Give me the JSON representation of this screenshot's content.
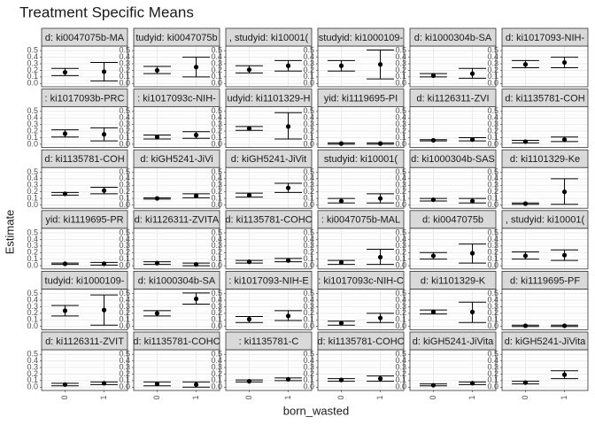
{
  "chart_data": {
    "type": "errorbar-facets",
    "title": "Treatment Specific Means",
    "x_label": "born_wasted",
    "y_label": "Estimate",
    "categories": [
      "0",
      "1"
    ],
    "ylim": [
      -0.05,
      0.57
    ],
    "yticks": [
      {
        "value": 0,
        "label": "0.0"
      },
      0.1,
      0.2,
      0.3,
      0.4,
      0.5
    ],
    "grid": true,
    "color": "#000000",
    "panels": [
      {
        "title": "d: ki0047075b-MA",
        "values": [
          0.17,
          0.18
        ],
        "lower": [
          0.12,
          0.04
        ],
        "upper": [
          0.23,
          0.32
        ]
      },
      {
        "title": "tudyid: ki0047075b",
        "values": [
          0.2,
          0.25
        ],
        "lower": [
          0.15,
          0.1
        ],
        "upper": [
          0.26,
          0.4
        ]
      },
      {
        "title": ", studyid: ki10001(",
        "values": [
          0.21,
          0.27
        ],
        "lower": [
          0.16,
          0.19
        ],
        "upper": [
          0.27,
          0.35
        ]
      },
      {
        "title": "studyid: ki1000109-",
        "values": [
          0.27,
          0.29
        ],
        "lower": [
          0.19,
          0.07
        ],
        "upper": [
          0.35,
          0.51
        ]
      },
      {
        "title": "d: ki1000304b-SA",
        "values": [
          0.12,
          0.15
        ],
        "lower": [
          0.1,
          0.08
        ],
        "upper": [
          0.15,
          0.23
        ]
      },
      {
        "title": "d: ki1017093-NIH-",
        "values": [
          0.29,
          0.32
        ],
        "lower": [
          0.24,
          0.24
        ],
        "upper": [
          0.35,
          0.4
        ]
      },
      {
        "title": ": ki1017093b-PRC",
        "values": [
          0.16,
          0.15
        ],
        "lower": [
          0.11,
          0.05
        ],
        "upper": [
          0.22,
          0.25
        ]
      },
      {
        "title": ": ki1017093c-NIH-",
        "values": [
          0.11,
          0.14
        ],
        "lower": [
          0.08,
          0.09
        ],
        "upper": [
          0.14,
          0.19
        ]
      },
      {
        "title": "udyid: ki1101329-H",
        "values": [
          0.24,
          0.27
        ],
        "lower": [
          0.21,
          0.08
        ],
        "upper": [
          0.27,
          0.48
        ]
      },
      {
        "title": "yid: ki1119695-PI",
        "values": [
          0.01,
          0.01
        ],
        "lower": [
          0.0,
          0.0
        ],
        "upper": [
          0.02,
          0.02
        ]
      },
      {
        "title": "d: ki1126311-ZVI",
        "values": [
          0.06,
          0.07
        ],
        "lower": [
          0.05,
          0.05
        ],
        "upper": [
          0.07,
          0.1
        ]
      },
      {
        "title": "d: ki1135781-COH",
        "values": [
          0.04,
          0.07
        ],
        "lower": [
          0.02,
          0.04
        ],
        "upper": [
          0.06,
          0.11
        ]
      },
      {
        "title": "d: ki1135781-COH",
        "values": [
          0.17,
          0.22
        ],
        "lower": [
          0.15,
          0.17
        ],
        "upper": [
          0.19,
          0.27
        ]
      },
      {
        "title": "d: kiGH5241-JiVi",
        "values": [
          0.1,
          0.14
        ],
        "lower": [
          0.09,
          0.11
        ],
        "upper": [
          0.11,
          0.17
        ]
      },
      {
        "title": "d: kiGH5241-JiVit",
        "values": [
          0.15,
          0.26
        ],
        "lower": [
          0.12,
          0.19
        ],
        "upper": [
          0.18,
          0.33
        ]
      },
      {
        "title": "studyid: ki10001(",
        "values": [
          0.06,
          0.1
        ],
        "lower": [
          0.03,
          0.03
        ],
        "upper": [
          0.1,
          0.17
        ]
      },
      {
        "title": "d: ki1000304b-SAS",
        "values": [
          0.08,
          0.06
        ],
        "lower": [
          0.06,
          0.03
        ],
        "upper": [
          0.1,
          0.1
        ]
      },
      {
        "title": "d: ki1101329-Ke",
        "values": [
          0.02,
          0.2
        ],
        "lower": [
          0.01,
          0.01
        ],
        "upper": [
          0.03,
          0.4
        ]
      },
      {
        "title": "yid: ki1119695-PR",
        "values": [
          0.03,
          0.03
        ],
        "lower": [
          0.02,
          0.01
        ],
        "upper": [
          0.04,
          0.05
        ]
      },
      {
        "title": "d: ki1126311-ZVITA",
        "values": [
          0.04,
          0.02
        ],
        "lower": [
          0.02,
          0.0
        ],
        "upper": [
          0.06,
          0.04
        ]
      },
      {
        "title": "d: ki1135781-COHC",
        "values": [
          0.06,
          0.08
        ],
        "lower": [
          0.04,
          0.06
        ],
        "upper": [
          0.08,
          0.11
        ]
      },
      {
        "title": ": ki0047075b-MAL",
        "values": [
          0.05,
          0.13
        ],
        "lower": [
          0.02,
          0.02
        ],
        "upper": [
          0.08,
          0.25
        ]
      },
      {
        "title": "d: ki0047075b",
        "values": [
          0.15,
          0.19
        ],
        "lower": [
          0.1,
          0.04
        ],
        "upper": [
          0.2,
          0.33
        ]
      },
      {
        "title": ", studyid: ki10001(",
        "values": [
          0.15,
          0.16
        ],
        "lower": [
          0.1,
          0.08
        ],
        "upper": [
          0.21,
          0.24
        ]
      },
      {
        "title": "tudyid: ki1000109-",
        "values": [
          0.24,
          0.25
        ],
        "lower": [
          0.16,
          0.02
        ],
        "upper": [
          0.32,
          0.48
        ]
      },
      {
        "title": "d: ki1000304b-SA",
        "values": [
          0.2,
          0.42
        ],
        "lower": [
          0.16,
          0.34
        ],
        "upper": [
          0.24,
          0.51
        ]
      },
      {
        "title": ": ki1017093-NIH-E",
        "values": [
          0.11,
          0.16
        ],
        "lower": [
          0.06,
          0.09
        ],
        "upper": [
          0.15,
          0.24
        ]
      },
      {
        "title": ": ki1017093c-NIH-C",
        "values": [
          0.05,
          0.13
        ],
        "lower": [
          0.02,
          0.06
        ],
        "upper": [
          0.08,
          0.2
        ]
      },
      {
        "title": "d: ki1101329-K",
        "values": [
          0.22,
          0.22
        ],
        "lower": [
          0.19,
          0.06
        ],
        "upper": [
          0.25,
          0.37
        ]
      },
      {
        "title": "d: ki1119695-PF",
        "values": [
          0.01,
          0.01
        ],
        "lower": [
          0.0,
          0.0
        ],
        "upper": [
          0.02,
          0.02
        ]
      },
      {
        "title": "d: ki1126311-ZVIT",
        "values": [
          0.04,
          0.06
        ],
        "lower": [
          0.02,
          0.04
        ],
        "upper": [
          0.06,
          0.08
        ]
      },
      {
        "title": "d: ki1135781-COHC",
        "values": [
          0.05,
          0.04
        ],
        "lower": [
          0.02,
          0.0
        ],
        "upper": [
          0.08,
          0.08
        ]
      },
      {
        "title": ": ki1135781-C",
        "values": [
          0.09,
          0.12
        ],
        "lower": [
          0.08,
          0.1
        ],
        "upper": [
          0.11,
          0.14
        ]
      },
      {
        "title": "d: ki1135781-COHC",
        "values": [
          0.11,
          0.13
        ],
        "lower": [
          0.09,
          0.09
        ],
        "upper": [
          0.13,
          0.17
        ]
      },
      {
        "title": "d: kiGH5241-JiVita",
        "values": [
          0.03,
          0.06
        ],
        "lower": [
          0.02,
          0.04
        ],
        "upper": [
          0.05,
          0.08
        ]
      },
      {
        "title": "d: kiGH5241-JiVita",
        "values": [
          0.07,
          0.19
        ],
        "lower": [
          0.05,
          0.13
        ],
        "upper": [
          0.09,
          0.25
        ]
      }
    ]
  }
}
